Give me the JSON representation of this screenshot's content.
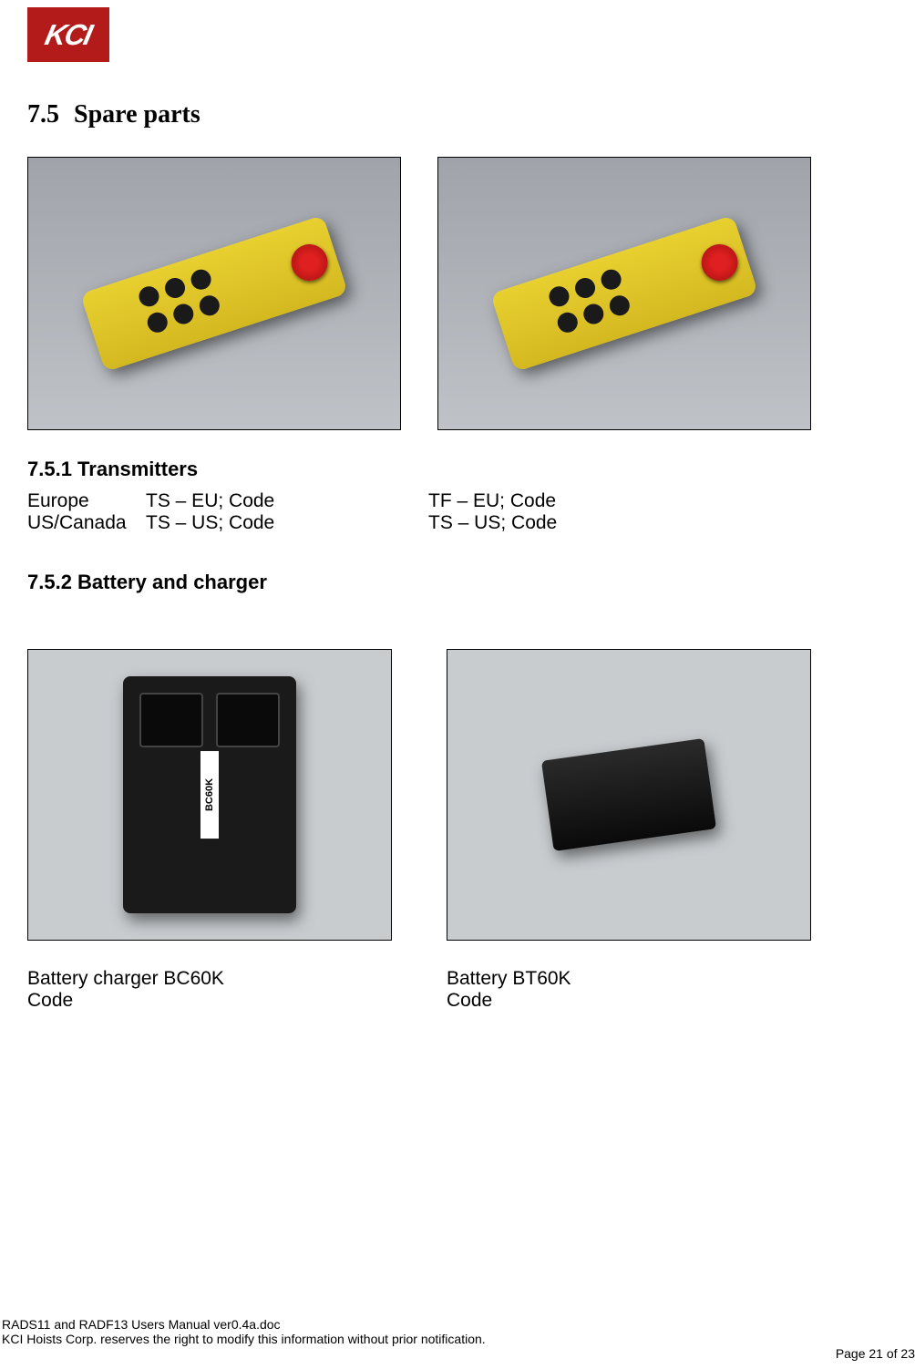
{
  "logo_text": "KCI",
  "section": {
    "number": "7.5",
    "title": "Spare parts"
  },
  "subsection1": {
    "number": "7.5.1",
    "title": "Transmitters",
    "full_header": "7.5.1  Transmitters",
    "rows": [
      {
        "region": "Europe",
        "col1": "TS – EU; Code",
        "col2": "TF – EU; Code"
      },
      {
        "region": "US/Canada",
        "col1": "TS – US; Code",
        "col2": "TS – US; Code"
      }
    ]
  },
  "subsection2": {
    "number": "7.5.2",
    "title": "Battery and charger",
    "full_header": "7.5.2  Battery and charger",
    "charger_model": "BC60K",
    "labels": [
      {
        "name": "Battery charger BC60K",
        "code_label": "Code"
      },
      {
        "name": "Battery BT60K",
        "code_label": "Code"
      }
    ]
  },
  "footer": {
    "line1": "RADS11 and RADF13 Users Manual ver0.4a.doc",
    "line2": "KCI Hoists Corp.  reserves the right to modify this information without prior notification.",
    "page": "Page 21 of 23"
  },
  "colors": {
    "logo_bg": "#b31b1b",
    "logo_text": "#ffffff",
    "image_border": "#000000",
    "image_bg_top": "#a0a4aa",
    "image_bg_bottom": "#bfc3c8",
    "remote_yellow": "#e8d030",
    "remote_red": "#e02020",
    "text": "#000000"
  }
}
